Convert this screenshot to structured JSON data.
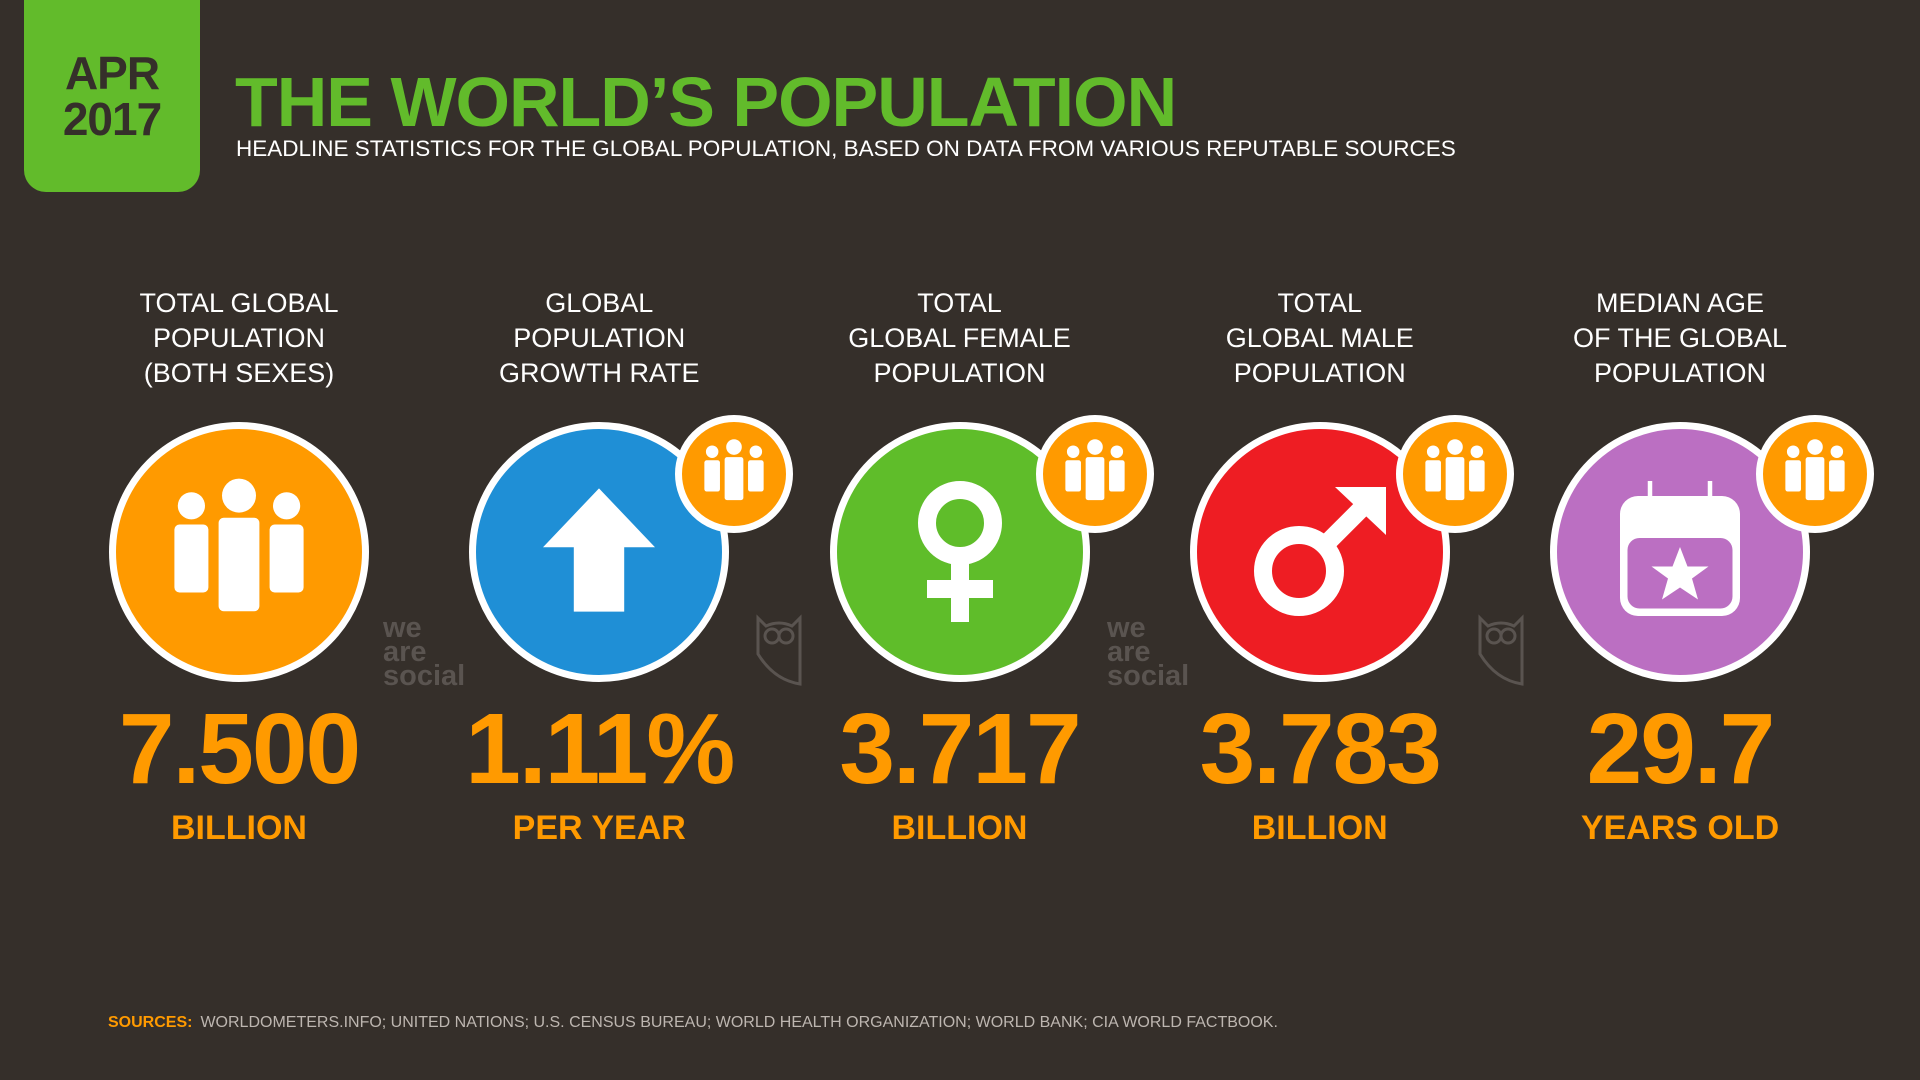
{
  "header": {
    "month": "APR",
    "year": "2017",
    "title": "THE WORLD’S POPULATION",
    "subtitle": "HEADLINE STATISTICS FOR THE GLOBAL POPULATION, BASED ON DATA FROM VARIOUS REPUTABLE SOURCES"
  },
  "colors": {
    "background": "#352f2a",
    "accent_green": "#62bb2b",
    "accent_orange": "#ff9a00",
    "blue": "#1f8fd6",
    "green": "#5fbd2a",
    "red": "#ee1d23",
    "purple": "#bb6fc2"
  },
  "stats": [
    {
      "label": [
        "TOTAL GLOBAL",
        "POPULATION",
        "(BOTH SEXES)"
      ],
      "value": "7.500",
      "unit": "BILLION",
      "icon": "people-icon",
      "color": "#ff9a00"
    },
    {
      "label": [
        "GLOBAL",
        "POPULATION",
        "GROWTH RATE"
      ],
      "value": "1.11%",
      "unit": "PER YEAR",
      "icon": "arrow-up-icon",
      "color": "#1f8fd6"
    },
    {
      "label": [
        "TOTAL",
        "GLOBAL FEMALE",
        "POPULATION"
      ],
      "value": "3.717",
      "unit": "BILLION",
      "icon": "female-symbol-icon",
      "color": "#5fbd2a"
    },
    {
      "label": [
        "TOTAL",
        "GLOBAL MALE",
        "POPULATION"
      ],
      "value": "3.783",
      "unit": "BILLION",
      "icon": "male-symbol-icon",
      "color": "#ee1d23"
    },
    {
      "label": [
        "MEDIAN AGE",
        "OF THE GLOBAL",
        "POPULATION"
      ],
      "value": "29.7",
      "unit": "YEARS OLD",
      "icon": "calendar-star-icon",
      "color": "#bb6fc2"
    }
  ],
  "watermark": {
    "logo": "we are social"
  },
  "sources": {
    "label": "SOURCES:",
    "text": "WORLDOMETERS.INFO; UNITED NATIONS; U.S. CENSUS BUREAU; WORLD HEALTH ORGANIZATION; WORLD BANK; CIA WORLD FACTBOOK."
  }
}
